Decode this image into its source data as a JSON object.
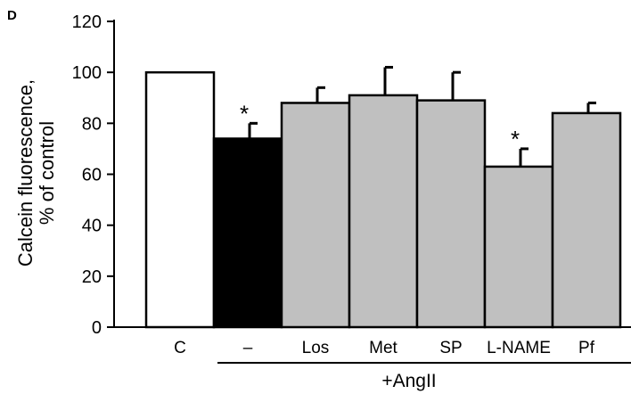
{
  "panel_label": "D",
  "chart_data": {
    "type": "bar",
    "categories": [
      "C",
      "–",
      "Los",
      "Met",
      "SP",
      "L-NAME",
      "Pf"
    ],
    "values": [
      100,
      74,
      88,
      91,
      89,
      63,
      84
    ],
    "errors": [
      0,
      6,
      6,
      11,
      11,
      7,
      4
    ],
    "significance": [
      "",
      "*",
      "",
      "",
      "",
      "*",
      ""
    ],
    "bar_colors": [
      "#ffffff",
      "#000000",
      "#c0c0c0",
      "#c0c0c0",
      "#c0c0c0",
      "#c0c0c0",
      "#c0c0c0"
    ],
    "ylabel_lines": [
      "Calcein fluorescence,",
      "% of control"
    ],
    "xlabel": "",
    "group_label": "+AngII",
    "group_range": [
      "–",
      "Pf"
    ],
    "ylim": [
      0,
      120
    ],
    "yticks": [
      0,
      20,
      40,
      60,
      80,
      100,
      120
    ],
    "grid": false,
    "legend": "none"
  }
}
